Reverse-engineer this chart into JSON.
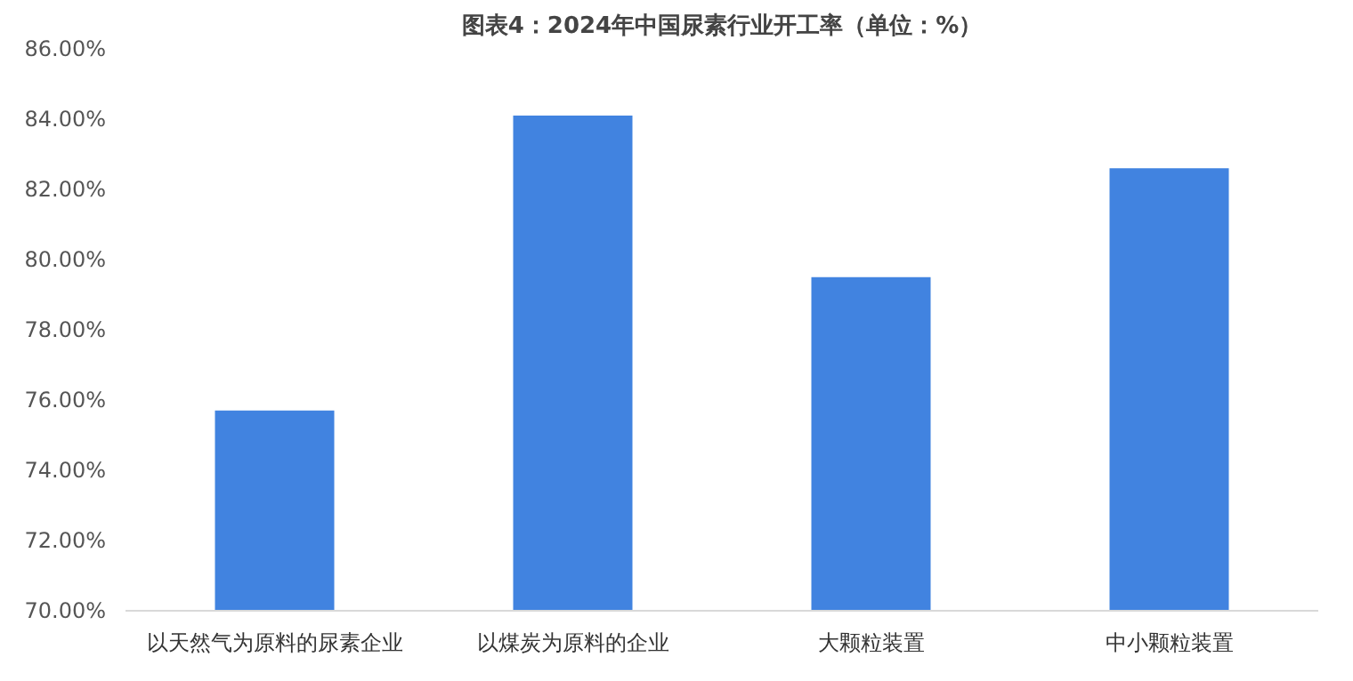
{
  "chart_data": {
    "type": "bar",
    "title": "图表4：2024年中国尿素行业开工率（单位：%）",
    "categories": [
      "以天然气为原料的尿素企业",
      "以煤炭为原料的企业",
      "大颗粒装置",
      "中小颗粒装置"
    ],
    "values": [
      75.7,
      84.1,
      79.5,
      82.6
    ],
    "color": "#4183e0",
    "ylim": [
      70,
      86
    ],
    "yticks": [
      {
        "value": 70,
        "label": "70.00%"
      },
      {
        "value": 72,
        "label": "72.00%"
      },
      {
        "value": 74,
        "label": "74.00%"
      },
      {
        "value": 76,
        "label": "76.00%"
      },
      {
        "value": 78,
        "label": "78.00%"
      },
      {
        "value": 80,
        "label": "80.00%"
      },
      {
        "value": 82,
        "label": "82.00%"
      },
      {
        "value": 84,
        "label": "84.00%"
      },
      {
        "value": 86,
        "label": "86.00%"
      }
    ],
    "grid": false
  }
}
